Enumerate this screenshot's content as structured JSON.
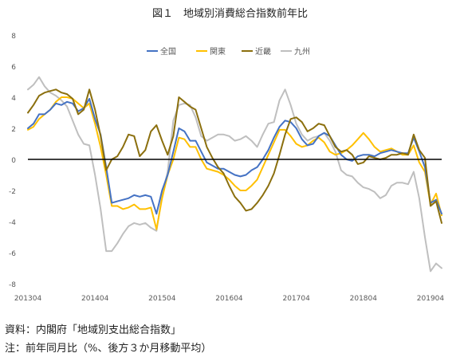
{
  "figure": {
    "title": "図１　地域別消費総合指数前年比",
    "source": "資料：内閣府「地域別支出総合指数」",
    "note": "注：前年同月比（%、後方３か月移動平均）"
  },
  "chart_data": {
    "type": "line",
    "title": "図１　地域別消費総合指数前年比",
    "xlabel": "",
    "ylabel": "",
    "ylim": [
      -8,
      8
    ],
    "yticks": [
      8,
      6,
      4,
      2,
      0,
      -2,
      -4,
      -6,
      -8
    ],
    "x_start": "2013-04",
    "x_tick_labels": [
      "201304",
      "201404",
      "201504",
      "201604",
      "201704",
      "201804",
      "201904"
    ],
    "grid": false,
    "legend_position": "top",
    "colors": {
      "全国": "#4472C4",
      "関東": "#FFC000",
      "近畿": "#8B6F0E",
      "九州": "#BFBFBF",
      "zero_line": "#000000"
    },
    "series": [
      {
        "name": "全国",
        "values": [
          2.0,
          2.3,
          2.9,
          2.9,
          3.2,
          3.6,
          3.5,
          3.7,
          3.6,
          3.1,
          3.3,
          3.9,
          2.6,
          1.6,
          -0.5,
          -2.8,
          -2.7,
          -2.6,
          -2.5,
          -2.3,
          -2.4,
          -2.3,
          -2.4,
          -3.5,
          -2.0,
          -1.0,
          0.5,
          2.0,
          1.8,
          1.2,
          1.2,
          0.5,
          -0.2,
          -0.4,
          -0.6,
          -0.6,
          -0.8,
          -1.0,
          -1.1,
          -1.0,
          -0.7,
          -0.5,
          0.0,
          0.6,
          1.4,
          2.1,
          2.5,
          2.4,
          2.0,
          1.3,
          0.9,
          1.0,
          1.5,
          1.7,
          1.5,
          0.9,
          0.3,
          0.0,
          -0.1,
          0.2,
          0.3,
          0.3,
          0.2,
          0.4,
          0.5,
          0.6,
          0.5,
          0.4,
          0.4,
          1.4,
          0.5,
          -0.5,
          -2.8,
          -2.6,
          -3.5
        ]
      },
      {
        "name": "関東",
        "values": [
          1.9,
          2.1,
          2.6,
          2.9,
          3.2,
          3.7,
          4.0,
          4.0,
          3.9,
          3.6,
          3.3,
          3.6,
          2.3,
          0.8,
          -1.0,
          -3.0,
          -3.0,
          -3.2,
          -3.1,
          -2.9,
          -3.2,
          -3.2,
          -3.1,
          -4.5,
          -2.5,
          -1.0,
          0.0,
          1.4,
          1.3,
          0.8,
          0.8,
          0.0,
          -0.6,
          -0.7,
          -0.8,
          -1.0,
          -1.3,
          -1.7,
          -2.0,
          -2.0,
          -1.7,
          -1.3,
          -0.5,
          0.3,
          1.1,
          1.9,
          1.9,
          1.5,
          1.0,
          0.8,
          0.9,
          1.2,
          1.4,
          1.1,
          0.5,
          0.3,
          0.4,
          0.6,
          0.9,
          1.3,
          1.7,
          1.3,
          0.8,
          0.5,
          0.6,
          0.7,
          0.5,
          0.3,
          0.3,
          0.9,
          -0.2,
          -0.8,
          -2.9,
          -2.2,
          -3.6
        ]
      },
      {
        "name": "近畿",
        "values": [
          3.0,
          3.5,
          4.1,
          4.3,
          4.4,
          4.5,
          4.3,
          4.2,
          3.9,
          2.9,
          3.2,
          4.5,
          3.2,
          1.5,
          -0.7,
          0.0,
          0.2,
          0.8,
          1.6,
          1.5,
          0.2,
          0.6,
          1.8,
          2.2,
          1.2,
          0.3,
          1.5,
          4.0,
          3.7,
          3.4,
          3.2,
          2.0,
          0.8,
          0.1,
          -0.5,
          -0.9,
          -1.7,
          -2.4,
          -2.8,
          -3.3,
          -3.2,
          -2.8,
          -2.3,
          -1.7,
          -0.9,
          0.3,
          1.6,
          2.6,
          2.7,
          2.4,
          1.8,
          2.0,
          2.3,
          2.2,
          1.5,
          0.8,
          0.5,
          0.6,
          0.3,
          -0.3,
          -0.2,
          0.2,
          0.1,
          0.0,
          0.1,
          0.3,
          0.3,
          0.4,
          0.3,
          1.6,
          0.6,
          0.1,
          -3.0,
          -2.7,
          -4.1
        ]
      },
      {
        "name": "九州",
        "values": [
          4.5,
          4.8,
          5.3,
          4.7,
          4.3,
          4.1,
          3.8,
          3.4,
          2.5,
          1.6,
          1.0,
          0.9,
          -1.0,
          -3.2,
          -5.9,
          -5.9,
          -5.4,
          -4.8,
          -4.3,
          -4.1,
          -4.2,
          -4.1,
          -4.4,
          -4.6,
          -2.3,
          -0.8,
          2.5,
          3.5,
          3.6,
          3.5,
          2.7,
          1.5,
          1.2,
          1.4,
          1.6,
          1.6,
          1.5,
          1.2,
          1.3,
          1.5,
          1.2,
          0.8,
          1.6,
          2.3,
          2.4,
          3.8,
          4.5,
          3.5,
          2.3,
          1.6,
          1.2,
          1.4,
          1.5,
          1.7,
          1.2,
          0.5,
          -0.7,
          -1.0,
          -1.1,
          -1.5,
          -1.8,
          -1.9,
          -2.1,
          -2.5,
          -2.3,
          -1.7,
          -1.5,
          -1.5,
          -1.6,
          -0.8,
          -2.5,
          -5.0,
          -7.2,
          -6.7,
          -7.0
        ]
      }
    ]
  }
}
